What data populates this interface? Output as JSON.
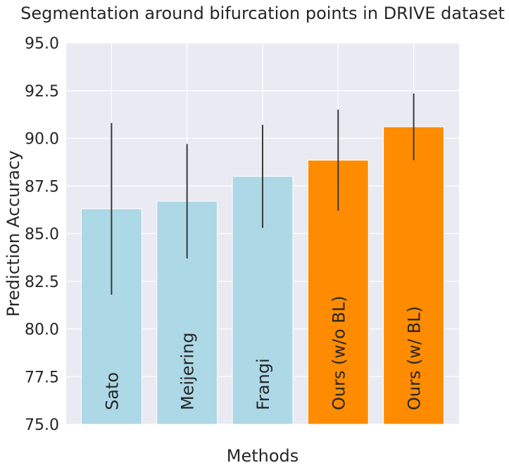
{
  "chart_data": {
    "type": "bar",
    "title": "Segmentation around bifurcation points in DRIVE dataset",
    "xlabel": "Methods",
    "ylabel": "Prediction Accuracy",
    "ylim": [
      75.0,
      95.0
    ],
    "yticks": [
      "75.0",
      "77.5",
      "80.0",
      "82.5",
      "85.0",
      "87.5",
      "90.0",
      "92.5",
      "95.0"
    ],
    "grid": true,
    "categories": [
      "Sato",
      "Meijering",
      "Frangi",
      "Ours (w/o BL)",
      "Ours (w/ BL)"
    ],
    "values": [
      86.3,
      86.7,
      88.0,
      88.85,
      90.6
    ],
    "error": [
      4.5,
      3.0,
      2.7,
      2.65,
      1.75
    ],
    "colors": [
      "#add8e6",
      "#add8e6",
      "#add8e6",
      "#ff8c00",
      "#ff8c00"
    ]
  }
}
